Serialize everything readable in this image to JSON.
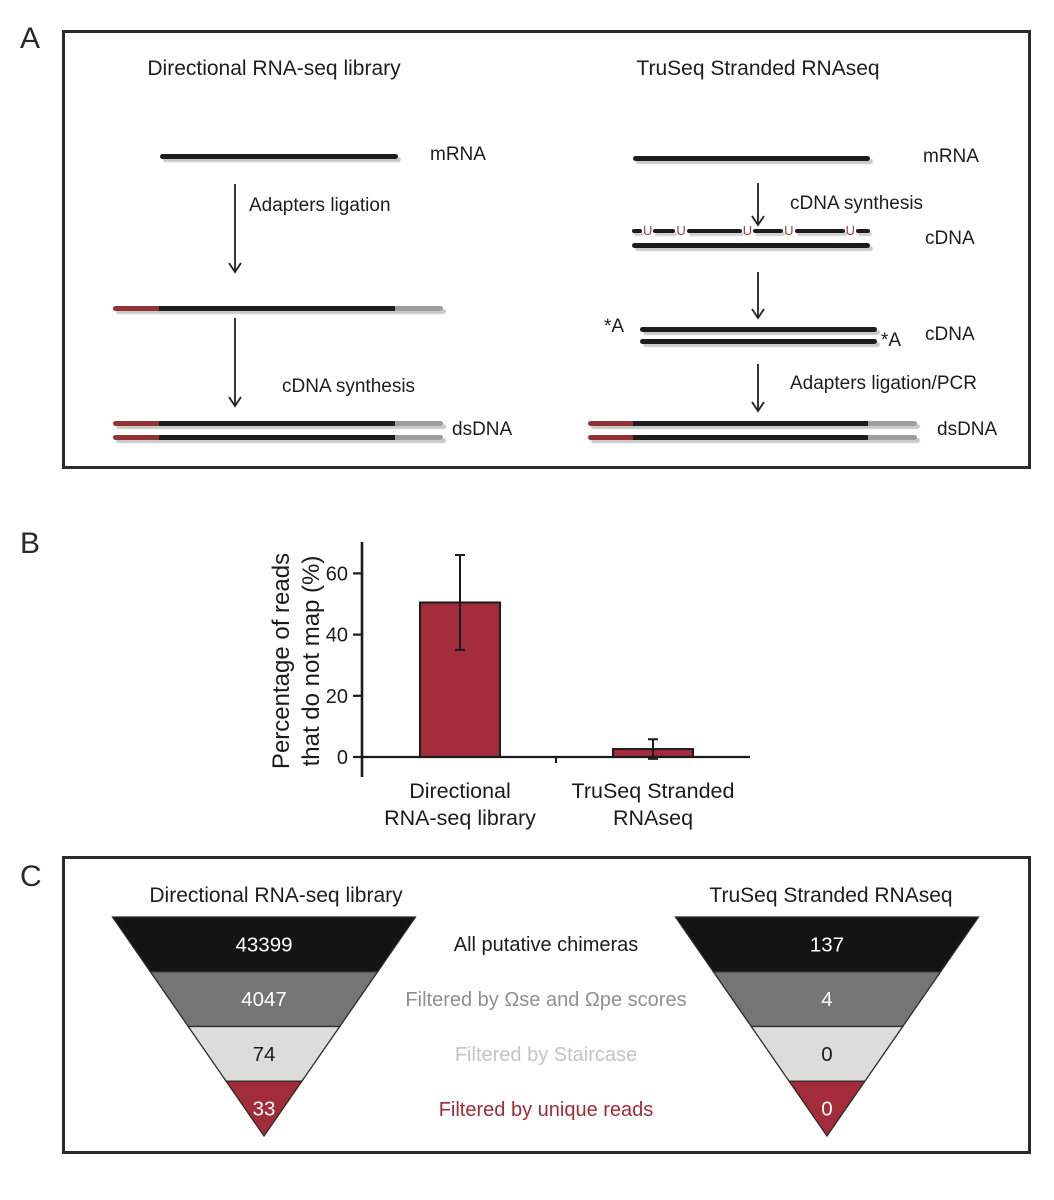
{
  "figure": {
    "type": "scientific-figure",
    "panel_labels": [
      "A",
      "B",
      "C"
    ]
  },
  "panels": {
    "a": {
      "label": "A",
      "left": {
        "title": "Directional RNA-seq library",
        "step1": "Adapters ligation",
        "step2": "cDNA synthesis",
        "mrna_label": "mRNA",
        "dsdna_label": "dsDNA"
      },
      "right": {
        "title": "TruSeq Stranded RNAseq",
        "step1": "cDNA synthesis",
        "step2": "Adapters ligation/PCR",
        "mrna_label": "mRNA",
        "cdna_label_1": "cDNA",
        "cdna_label_2": "cDNA",
        "dsdna_label": "dsDNA",
        "u_mark": "U",
        "a_mark_left": "*A",
        "a_mark_right": "*A"
      },
      "colors": {
        "strand_black": "#1d1d1d",
        "adapter_red": "#943137",
        "adapter_gray": "#9d9d9d",
        "u_mark_color": "#8c4a42"
      }
    },
    "b": {
      "label": "B"
    },
    "c": {
      "label": "C",
      "left_funnel": {
        "title": "Directional RNA-seq library",
        "values": [
          "43399",
          "4047",
          "74",
          "33"
        ]
      },
      "right_funnel": {
        "title": "TruSeq Stranded RNAseq",
        "values": [
          "137",
          "4",
          "0",
          "0"
        ]
      },
      "stage_labels": [
        "All putative chimeras",
        "Filtered by Ωse and Ωpe scores",
        "Filtered by Staircase",
        "Filtered by unique reads"
      ],
      "band_colors": [
        "#141414",
        "#757575",
        "#dcdcda",
        "#a22c3a"
      ],
      "value_colors": [
        "#ffffff",
        "#ffffff",
        "#1d1d1d",
        "#ffffff"
      ],
      "label_colors": [
        "#1c1c1c",
        "#909090",
        "#c4c4c4",
        "#a02c38"
      ]
    }
  },
  "chart_data": {
    "type": "bar",
    "title": "",
    "categories": [
      [
        "Directional",
        "RNA-seq library"
      ],
      [
        "TruSeq Stranded",
        "RNAseq"
      ]
    ],
    "values": [
      50.5,
      2.6
    ],
    "errors": [
      15.5,
      3.2
    ],
    "ylabel_lines": [
      "Percentage of reads",
      "that do not map (%)"
    ],
    "yticks": [
      0,
      20,
      40,
      60
    ],
    "ylim": [
      0,
      68
    ],
    "bar_color": "#a22c3a",
    "axis_color": "#1b1b1b",
    "grid": false,
    "legend": null
  }
}
